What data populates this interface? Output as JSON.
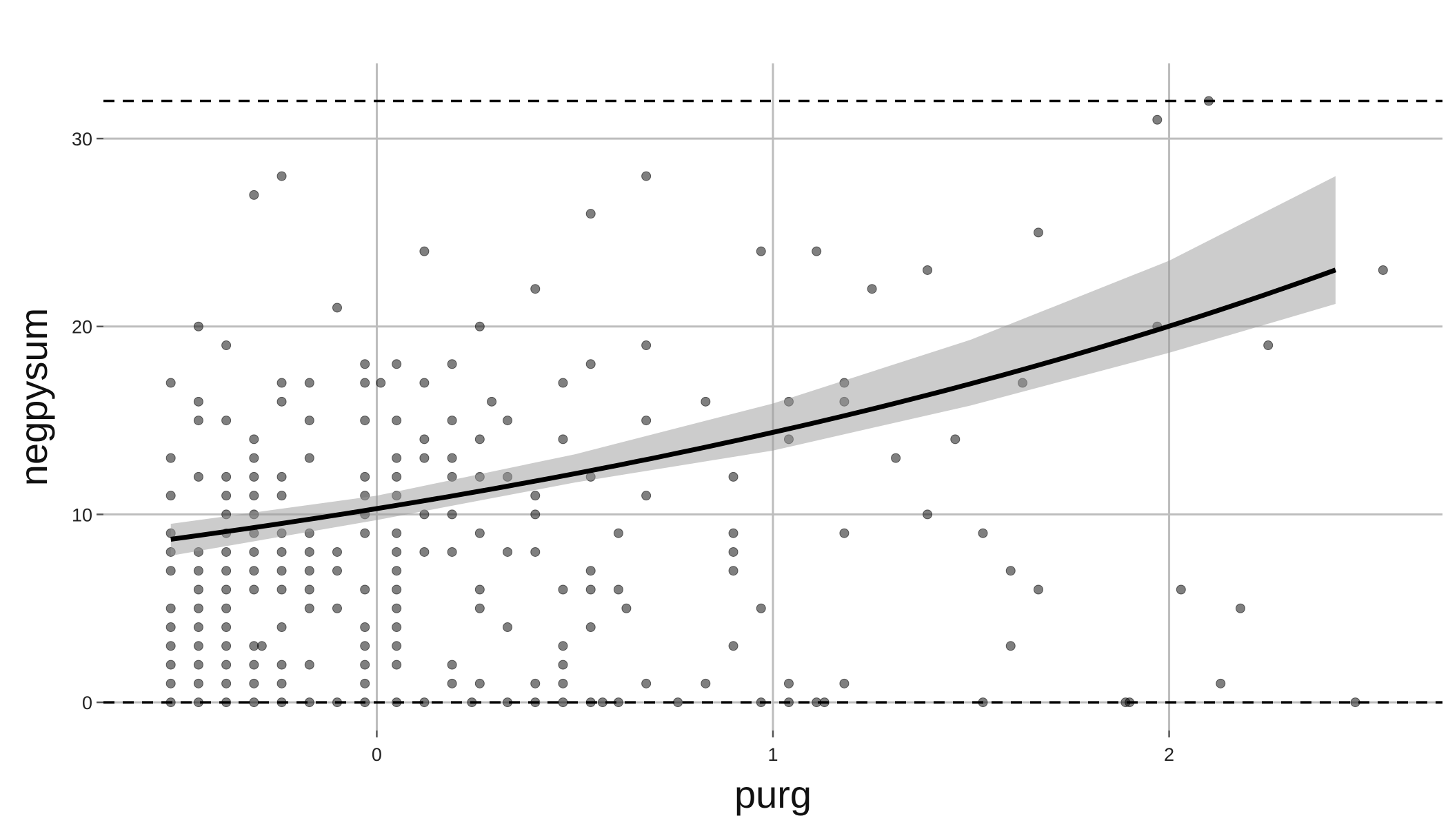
{
  "chart_data": {
    "type": "scatter",
    "title": "",
    "xlabel": "purg",
    "ylabel": "negpysum",
    "xlim": [
      -0.69,
      2.69
    ],
    "ylim": [
      -1.5,
      34
    ],
    "x_ticks": [
      0,
      1,
      2
    ],
    "y_ticks": [
      0,
      10,
      20,
      30
    ],
    "grid": true,
    "reference_lines_y": [
      0,
      32
    ],
    "fit": {
      "type": "exponential",
      "intercept_log": 2.333,
      "slope_log": 0.3318,
      "x_range": [
        -0.52,
        2.42
      ],
      "band_upper": [
        [
          -0.52,
          9.5
        ],
        [
          0.0,
          11.0
        ],
        [
          0.5,
          13.2
        ],
        [
          1.0,
          15.9
        ],
        [
          1.5,
          19.3
        ],
        [
          2.0,
          23.5
        ],
        [
          2.42,
          28.0
        ]
      ],
      "band_lower": [
        [
          -0.52,
          7.8
        ],
        [
          0.0,
          9.7
        ],
        [
          0.5,
          11.7
        ],
        [
          1.0,
          13.4
        ],
        [
          1.5,
          15.8
        ],
        [
          2.0,
          18.6
        ],
        [
          2.42,
          21.2
        ]
      ]
    },
    "points": [
      [
        -0.52,
        0
      ],
      [
        -0.52,
        1
      ],
      [
        -0.52,
        2
      ],
      [
        -0.52,
        3
      ],
      [
        -0.52,
        4
      ],
      [
        -0.52,
        5
      ],
      [
        -0.52,
        7
      ],
      [
        -0.52,
        8
      ],
      [
        -0.52,
        9
      ],
      [
        -0.52,
        11
      ],
      [
        -0.52,
        13
      ],
      [
        -0.52,
        17
      ],
      [
        -0.45,
        0
      ],
      [
        -0.45,
        1
      ],
      [
        -0.45,
        2
      ],
      [
        -0.45,
        3
      ],
      [
        -0.45,
        4
      ],
      [
        -0.45,
        5
      ],
      [
        -0.45,
        6
      ],
      [
        -0.45,
        7
      ],
      [
        -0.45,
        8
      ],
      [
        -0.45,
        12
      ],
      [
        -0.45,
        15
      ],
      [
        -0.45,
        16
      ],
      [
        -0.45,
        20
      ],
      [
        -0.38,
        0
      ],
      [
        -0.38,
        1
      ],
      [
        -0.38,
        2
      ],
      [
        -0.38,
        3
      ],
      [
        -0.38,
        4
      ],
      [
        -0.38,
        5
      ],
      [
        -0.38,
        6
      ],
      [
        -0.38,
        7
      ],
      [
        -0.38,
        8
      ],
      [
        -0.38,
        9
      ],
      [
        -0.38,
        10
      ],
      [
        -0.38,
        11
      ],
      [
        -0.38,
        12
      ],
      [
        -0.38,
        15
      ],
      [
        -0.38,
        19
      ],
      [
        -0.31,
        0
      ],
      [
        -0.31,
        1
      ],
      [
        -0.31,
        2
      ],
      [
        -0.31,
        3
      ],
      [
        -0.31,
        6
      ],
      [
        -0.31,
        7
      ],
      [
        -0.31,
        8
      ],
      [
        -0.31,
        9
      ],
      [
        -0.31,
        10
      ],
      [
        -0.31,
        11
      ],
      [
        -0.31,
        12
      ],
      [
        -0.31,
        13
      ],
      [
        -0.31,
        14
      ],
      [
        -0.31,
        27
      ],
      [
        -0.29,
        3
      ],
      [
        -0.24,
        0
      ],
      [
        -0.24,
        1
      ],
      [
        -0.24,
        2
      ],
      [
        -0.24,
        4
      ],
      [
        -0.24,
        6
      ],
      [
        -0.24,
        7
      ],
      [
        -0.24,
        8
      ],
      [
        -0.24,
        9
      ],
      [
        -0.24,
        11
      ],
      [
        -0.24,
        12
      ],
      [
        -0.24,
        16
      ],
      [
        -0.24,
        17
      ],
      [
        -0.24,
        28
      ],
      [
        -0.17,
        0
      ],
      [
        -0.17,
        2
      ],
      [
        -0.17,
        5
      ],
      [
        -0.17,
        6
      ],
      [
        -0.17,
        7
      ],
      [
        -0.17,
        8
      ],
      [
        -0.17,
        9
      ],
      [
        -0.17,
        13
      ],
      [
        -0.17,
        15
      ],
      [
        -0.17,
        17
      ],
      [
        -0.1,
        0
      ],
      [
        -0.1,
        5
      ],
      [
        -0.1,
        7
      ],
      [
        -0.1,
        8
      ],
      [
        -0.1,
        21
      ],
      [
        -0.03,
        0
      ],
      [
        -0.03,
        1
      ],
      [
        -0.03,
        2
      ],
      [
        -0.03,
        3
      ],
      [
        -0.03,
        4
      ],
      [
        -0.03,
        6
      ],
      [
        -0.03,
        9
      ],
      [
        -0.03,
        10
      ],
      [
        -0.03,
        11
      ],
      [
        -0.03,
        12
      ],
      [
        -0.03,
        15
      ],
      [
        -0.03,
        17
      ],
      [
        -0.03,
        18
      ],
      [
        0.01,
        17
      ],
      [
        0.05,
        0
      ],
      [
        0.05,
        2
      ],
      [
        0.05,
        3
      ],
      [
        0.05,
        4
      ],
      [
        0.05,
        5
      ],
      [
        0.05,
        6
      ],
      [
        0.05,
        7
      ],
      [
        0.05,
        8
      ],
      [
        0.05,
        9
      ],
      [
        0.05,
        11
      ],
      [
        0.05,
        12
      ],
      [
        0.05,
        13
      ],
      [
        0.05,
        15
      ],
      [
        0.05,
        18
      ],
      [
        0.12,
        0
      ],
      [
        0.12,
        8
      ],
      [
        0.12,
        10
      ],
      [
        0.12,
        13
      ],
      [
        0.12,
        14
      ],
      [
        0.12,
        17
      ],
      [
        0.12,
        24
      ],
      [
        0.19,
        1
      ],
      [
        0.19,
        2
      ],
      [
        0.19,
        8
      ],
      [
        0.19,
        10
      ],
      [
        0.19,
        12
      ],
      [
        0.19,
        13
      ],
      [
        0.19,
        15
      ],
      [
        0.19,
        18
      ],
      [
        0.24,
        0
      ],
      [
        0.26,
        1
      ],
      [
        0.26,
        5
      ],
      [
        0.26,
        6
      ],
      [
        0.26,
        9
      ],
      [
        0.26,
        12
      ],
      [
        0.26,
        14
      ],
      [
        0.26,
        20
      ],
      [
        0.29,
        16
      ],
      [
        0.33,
        0
      ],
      [
        0.33,
        4
      ],
      [
        0.33,
        8
      ],
      [
        0.33,
        12
      ],
      [
        0.33,
        15
      ],
      [
        0.4,
        0
      ],
      [
        0.4,
        1
      ],
      [
        0.4,
        8
      ],
      [
        0.4,
        10
      ],
      [
        0.4,
        11
      ],
      [
        0.4,
        22
      ],
      [
        0.47,
        0
      ],
      [
        0.47,
        1
      ],
      [
        0.47,
        2
      ],
      [
        0.47,
        3
      ],
      [
        0.47,
        6
      ],
      [
        0.47,
        14
      ],
      [
        0.47,
        17
      ],
      [
        0.54,
        0
      ],
      [
        0.54,
        4
      ],
      [
        0.54,
        6
      ],
      [
        0.54,
        7
      ],
      [
        0.54,
        12
      ],
      [
        0.54,
        18
      ],
      [
        0.54,
        26
      ],
      [
        0.57,
        0
      ],
      [
        0.61,
        0
      ],
      [
        0.61,
        6
      ],
      [
        0.61,
        9
      ],
      [
        0.63,
        5
      ],
      [
        0.68,
        1
      ],
      [
        0.68,
        11
      ],
      [
        0.68,
        15
      ],
      [
        0.68,
        19
      ],
      [
        0.68,
        28
      ],
      [
        0.76,
        0
      ],
      [
        0.83,
        1
      ],
      [
        0.83,
        16
      ],
      [
        0.9,
        3
      ],
      [
        0.9,
        7
      ],
      [
        0.9,
        8
      ],
      [
        0.9,
        9
      ],
      [
        0.9,
        12
      ],
      [
        0.97,
        0
      ],
      [
        0.97,
        5
      ],
      [
        0.97,
        24
      ],
      [
        1.04,
        0
      ],
      [
        1.04,
        1
      ],
      [
        1.04,
        14
      ],
      [
        1.04,
        16
      ],
      [
        1.11,
        0
      ],
      [
        1.11,
        24
      ],
      [
        1.13,
        0
      ],
      [
        1.18,
        1
      ],
      [
        1.18,
        9
      ],
      [
        1.18,
        16
      ],
      [
        1.18,
        17
      ],
      [
        1.25,
        22
      ],
      [
        1.31,
        13
      ],
      [
        1.39,
        10
      ],
      [
        1.39,
        23
      ],
      [
        1.46,
        14
      ],
      [
        1.53,
        0
      ],
      [
        1.53,
        9
      ],
      [
        1.6,
        3
      ],
      [
        1.6,
        7
      ],
      [
        1.63,
        17
      ],
      [
        1.67,
        6
      ],
      [
        1.67,
        25
      ],
      [
        1.89,
        0
      ],
      [
        1.9,
        0
      ],
      [
        1.97,
        20
      ],
      [
        1.97,
        31
      ],
      [
        2.03,
        6
      ],
      [
        2.1,
        32
      ],
      [
        2.13,
        1
      ],
      [
        2.18,
        5
      ],
      [
        2.25,
        19
      ],
      [
        2.47,
        0
      ],
      [
        2.54,
        23
      ]
    ]
  }
}
